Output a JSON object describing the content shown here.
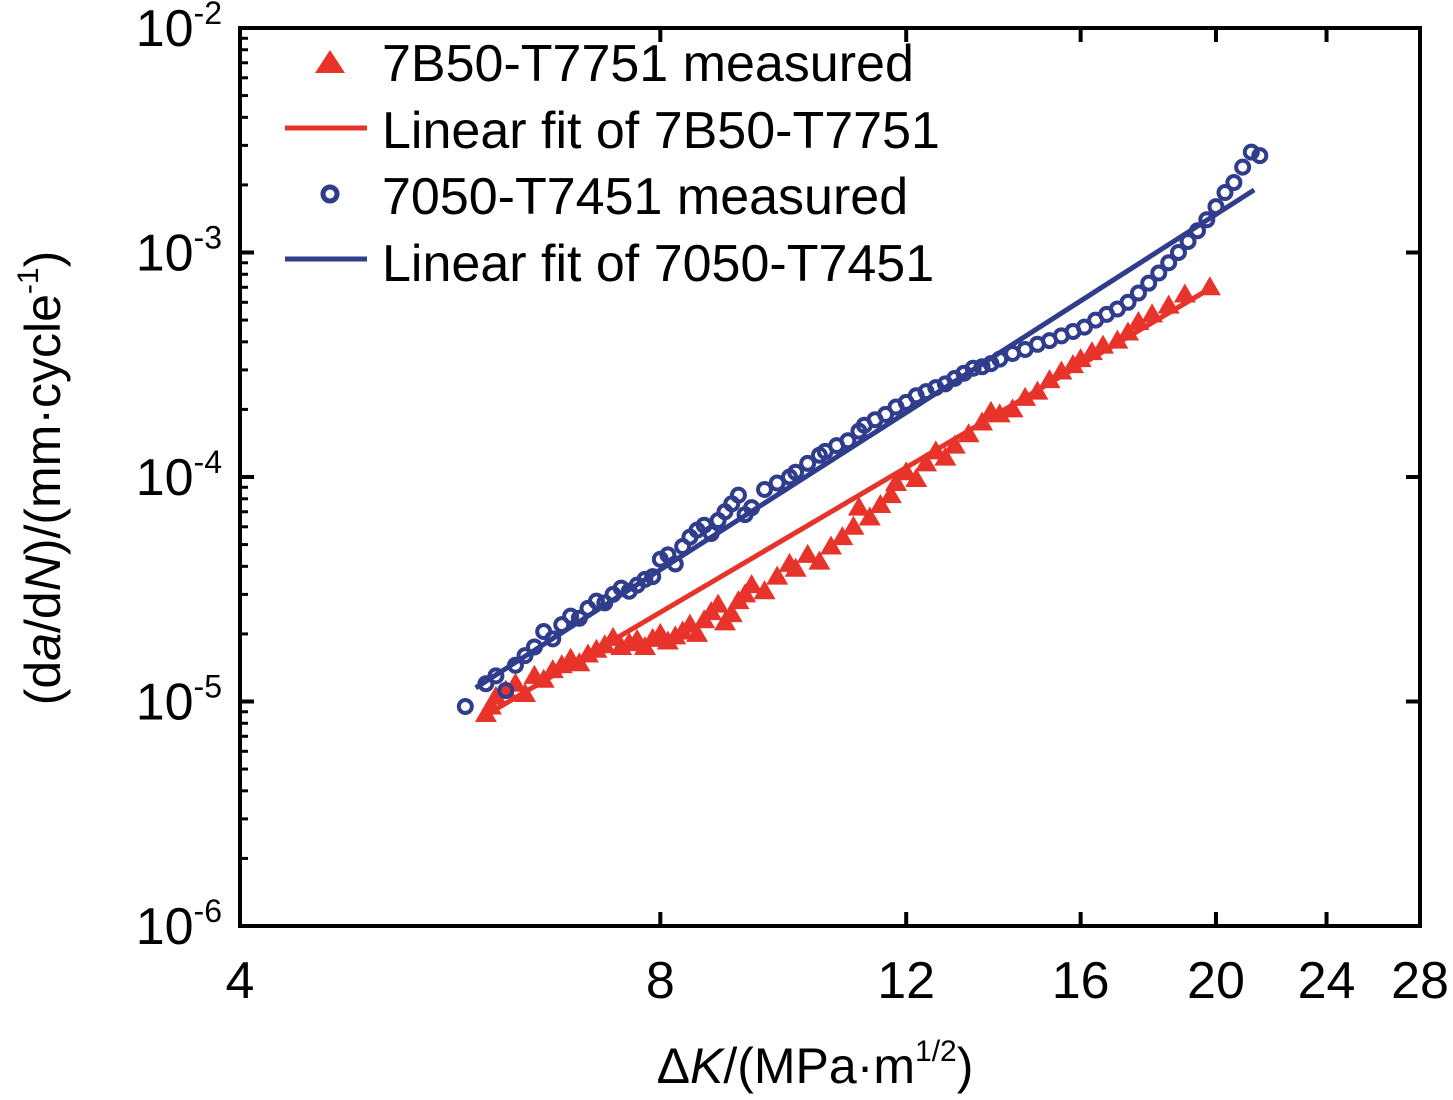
{
  "chart_data": {
    "type": "scatter",
    "x_scale": "log",
    "y_scale": "log",
    "xlim": [
      4,
      28
    ],
    "ylim": [
      1e-06,
      0.01
    ],
    "x_ticks": [
      4,
      8,
      12,
      16,
      20,
      24,
      28
    ],
    "x_tick_labels": [
      "4",
      "8",
      "12",
      "16",
      "20",
      "24",
      "28"
    ],
    "y_ticks": [
      1e-06,
      1e-05,
      0.0001,
      0.001,
      0.01
    ],
    "y_tick_labels": [
      {
        "base": "10",
        "exp": "-6"
      },
      {
        "base": "10",
        "exp": "-5"
      },
      {
        "base": "10",
        "exp": "-4"
      },
      {
        "base": "10",
        "exp": "-3"
      },
      {
        "base": "10",
        "exp": "-2"
      }
    ],
    "xlabel": {
      "pre": "Δ",
      "italic": "K",
      "post": "/(MPa·m",
      "sup": "1/2",
      "tail": ")"
    },
    "ylabel": {
      "p1": "(d",
      "i1": "a",
      "p2": "/d",
      "i2": "N",
      "p3": ")/(mm·cycle",
      "sup": "-1",
      "p4": ")"
    },
    "grid": false,
    "legend_position": "top-left",
    "series": [
      {
        "name": "7B50-T7751 measured",
        "marker": "triangle",
        "color": "#e8332a",
        "points": [
          [
            6.0,
            8.8e-06
          ],
          [
            6.05,
            9.5e-06
          ],
          [
            6.1,
            1.05e-05
          ],
          [
            6.2,
            1.12e-05
          ],
          [
            6.3,
            1.2e-05
          ],
          [
            6.4,
            1.08e-05
          ],
          [
            6.5,
            1.3e-05
          ],
          [
            6.6,
            1.25e-05
          ],
          [
            6.7,
            1.38e-05
          ],
          [
            6.8,
            1.45e-05
          ],
          [
            6.9,
            1.55e-05
          ],
          [
            7.0,
            1.48e-05
          ],
          [
            7.1,
            1.62e-05
          ],
          [
            7.2,
            1.7e-05
          ],
          [
            7.3,
            1.78e-05
          ],
          [
            7.4,
            1.92e-05
          ],
          [
            7.5,
            1.75e-05
          ],
          [
            7.6,
            1.82e-05
          ],
          [
            7.7,
            1.88e-05
          ],
          [
            7.8,
            1.75e-05
          ],
          [
            7.9,
            1.9e-05
          ],
          [
            8.0,
            2e-05
          ],
          [
            8.1,
            1.85e-05
          ],
          [
            8.2,
            1.95e-05
          ],
          [
            8.3,
            2.05e-05
          ],
          [
            8.4,
            2.2e-05
          ],
          [
            8.5,
            2e-05
          ],
          [
            8.6,
            2.3e-05
          ],
          [
            8.7,
            2.5e-05
          ],
          [
            8.8,
            2.7e-05
          ],
          [
            8.9,
            2.25e-05
          ],
          [
            9.0,
            2.45e-05
          ],
          [
            9.1,
            2.8e-05
          ],
          [
            9.2,
            3e-05
          ],
          [
            9.3,
            3.3e-05
          ],
          [
            9.5,
            3.1e-05
          ],
          [
            9.7,
            3.6e-05
          ],
          [
            9.9,
            4.1e-05
          ],
          [
            10.0,
            3.9e-05
          ],
          [
            10.2,
            4.5e-05
          ],
          [
            10.4,
            4.2e-05
          ],
          [
            10.6,
            4.9e-05
          ],
          [
            10.8,
            5.4e-05
          ],
          [
            11.0,
            6e-05
          ],
          [
            11.1,
            7.3e-05
          ],
          [
            11.3,
            6.6e-05
          ],
          [
            11.5,
            7.5e-05
          ],
          [
            11.7,
            8.3e-05
          ],
          [
            11.8,
            9.4e-05
          ],
          [
            12.0,
            0.000105
          ],
          [
            12.2,
            9.8e-05
          ],
          [
            12.4,
            0.000115
          ],
          [
            12.6,
            0.00013
          ],
          [
            12.8,
            0.000122
          ],
          [
            13.0,
            0.000138
          ],
          [
            13.3,
            0.000155
          ],
          [
            13.6,
            0.000175
          ],
          [
            13.8,
            0.000195
          ],
          [
            14.0,
            0.00019
          ],
          [
            14.3,
            0.0002
          ],
          [
            14.6,
            0.000225
          ],
          [
            14.9,
            0.00024
          ],
          [
            15.2,
            0.00027
          ],
          [
            15.5,
            0.000295
          ],
          [
            15.8,
            0.000315
          ],
          [
            16.0,
            0.000335
          ],
          [
            16.3,
            0.00036
          ],
          [
            16.6,
            0.000385
          ],
          [
            17.0,
            0.000405
          ],
          [
            17.3,
            0.00044
          ],
          [
            17.6,
            0.00049
          ],
          [
            18.0,
            0.00053
          ],
          [
            18.5,
            0.00058
          ],
          [
            19.0,
            0.00065
          ],
          [
            19.8,
            0.0007
          ]
        ]
      },
      {
        "name": "Linear fit of 7B50-T7751",
        "marker": "line",
        "color": "#e8332a",
        "points": [
          [
            6.0,
            8.7e-06
          ],
          [
            19.8,
            0.00069
          ]
        ]
      },
      {
        "name": "7050-T7451 measured",
        "marker": "circle",
        "color": "#303c8c",
        "points": [
          [
            5.8,
            9.5e-06
          ],
          [
            6.0,
            1.2e-05
          ],
          [
            6.1,
            1.3e-05
          ],
          [
            6.2,
            1.12e-05
          ],
          [
            6.3,
            1.45e-05
          ],
          [
            6.4,
            1.6e-05
          ],
          [
            6.5,
            1.75e-05
          ],
          [
            6.6,
            2.05e-05
          ],
          [
            6.7,
            1.9e-05
          ],
          [
            6.8,
            2.2e-05
          ],
          [
            6.9,
            2.4e-05
          ],
          [
            7.0,
            2.35e-05
          ],
          [
            7.1,
            2.6e-05
          ],
          [
            7.2,
            2.8e-05
          ],
          [
            7.3,
            2.75e-05
          ],
          [
            7.4,
            3e-05
          ],
          [
            7.5,
            3.2e-05
          ],
          [
            7.6,
            3.1e-05
          ],
          [
            7.7,
            3.3e-05
          ],
          [
            7.8,
            3.5e-05
          ],
          [
            7.9,
            3.6e-05
          ],
          [
            8.0,
            4.3e-05
          ],
          [
            8.1,
            4.5e-05
          ],
          [
            8.2,
            4.1e-05
          ],
          [
            8.3,
            4.9e-05
          ],
          [
            8.4,
            5.4e-05
          ],
          [
            8.5,
            5.8e-05
          ],
          [
            8.6,
            6.1e-05
          ],
          [
            8.7,
            5.6e-05
          ],
          [
            8.8,
            6.4e-05
          ],
          [
            8.9,
            7e-05
          ],
          [
            9.0,
            7.6e-05
          ],
          [
            9.1,
            8.3e-05
          ],
          [
            9.2,
            6.8e-05
          ],
          [
            9.3,
            7.3e-05
          ],
          [
            9.5,
            8.8e-05
          ],
          [
            9.7,
            9.4e-05
          ],
          [
            9.9,
            0.0001
          ],
          [
            10.0,
            0.000105
          ],
          [
            10.2,
            0.000115
          ],
          [
            10.4,
            0.000125
          ],
          [
            10.5,
            0.00013
          ],
          [
            10.7,
            0.000138
          ],
          [
            10.9,
            0.000145
          ],
          [
            11.1,
            0.00016
          ],
          [
            11.2,
            0.00017
          ],
          [
            11.4,
            0.00018
          ],
          [
            11.6,
            0.00019
          ],
          [
            11.8,
            0.000205
          ],
          [
            12.0,
            0.000215
          ],
          [
            12.2,
            0.00023
          ],
          [
            12.4,
            0.00024
          ],
          [
            12.6,
            0.00025
          ],
          [
            12.8,
            0.00026
          ],
          [
            13.0,
            0.000275
          ],
          [
            13.2,
            0.00029
          ],
          [
            13.4,
            0.000305
          ],
          [
            13.6,
            0.00031
          ],
          [
            13.8,
            0.00032
          ],
          [
            14.0,
            0.000335
          ],
          [
            14.3,
            0.000355
          ],
          [
            14.6,
            0.00037
          ],
          [
            14.9,
            0.00039
          ],
          [
            15.2,
            0.000405
          ],
          [
            15.5,
            0.000425
          ],
          [
            15.8,
            0.000445
          ],
          [
            16.1,
            0.000465
          ],
          [
            16.4,
            0.0005
          ],
          [
            16.7,
            0.00053
          ],
          [
            17.0,
            0.00056
          ],
          [
            17.3,
            0.0006
          ],
          [
            17.6,
            0.00066
          ],
          [
            17.9,
            0.00073
          ],
          [
            18.2,
            0.00081
          ],
          [
            18.5,
            0.0009
          ],
          [
            18.8,
            0.001
          ],
          [
            19.1,
            0.00112
          ],
          [
            19.4,
            0.00125
          ],
          [
            19.7,
            0.0014
          ],
          [
            20.0,
            0.0016
          ],
          [
            20.3,
            0.00185
          ],
          [
            20.6,
            0.00205
          ],
          [
            20.9,
            0.0024
          ],
          [
            21.2,
            0.0028
          ],
          [
            21.5,
            0.0027
          ]
        ]
      },
      {
        "name": "Linear fit of 7050-T7451",
        "marker": "line",
        "color": "#303c8c",
        "points": [
          [
            5.9,
            1.15e-05
          ],
          [
            21.3,
            0.0019
          ]
        ]
      }
    ]
  }
}
